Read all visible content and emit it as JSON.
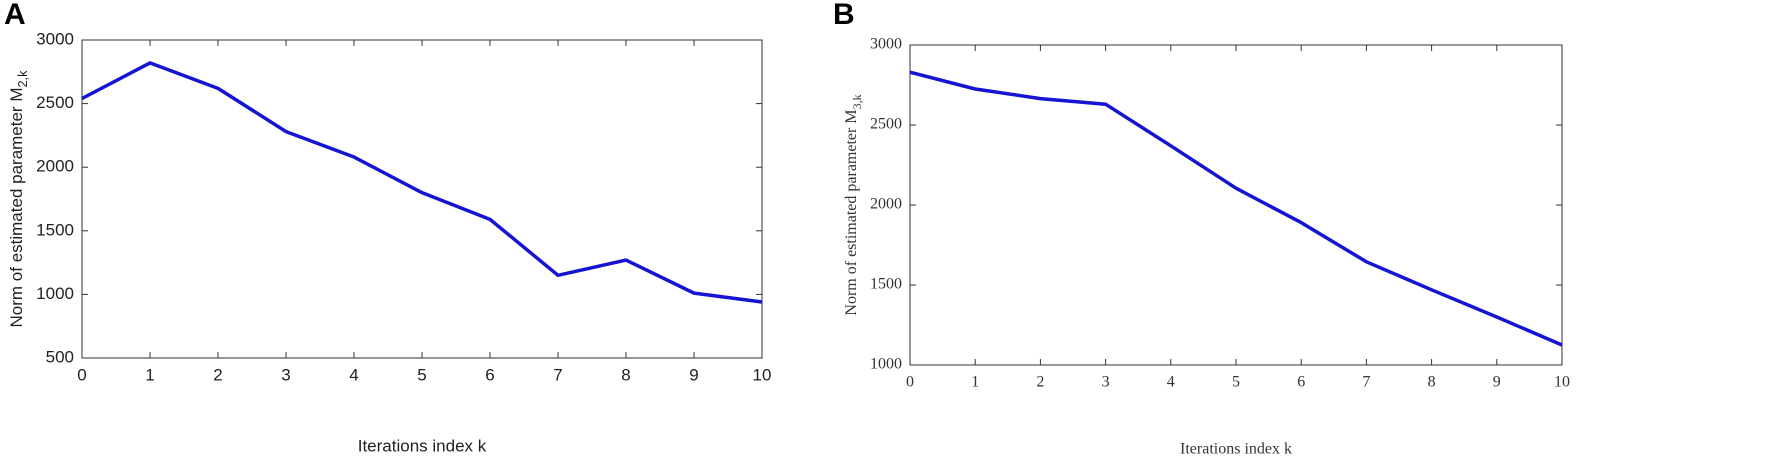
{
  "chart_data": [
    {
      "type": "line",
      "panel": "A",
      "xlabel": "Iterations index k",
      "ylabel": "Norm of estimated parameter M",
      "ylabel_subscript": "2,k",
      "x": [
        0,
        1,
        2,
        3,
        4,
        5,
        6,
        7,
        8,
        9,
        10
      ],
      "xlim": [
        0,
        10
      ],
      "xticks": [
        0,
        1,
        2,
        3,
        4,
        5,
        6,
        7,
        8,
        9,
        10
      ],
      "ylim": [
        500,
        3000
      ],
      "yticks": [
        500,
        1000,
        1500,
        2000,
        2500,
        3000
      ],
      "series": [
        {
          "color": "#1414d2",
          "values": [
            2540,
            2820,
            2620,
            2280,
            2080,
            1800,
            1590,
            1150,
            1270,
            1010,
            940
          ]
        }
      ]
    },
    {
      "type": "line",
      "panel": "B",
      "xlabel": "Iterations index k",
      "ylabel": "Norm of estimated parameter M",
      "ylabel_subscript": "3,k",
      "x": [
        0,
        1,
        2,
        3,
        4,
        5,
        6,
        7,
        8,
        9,
        10
      ],
      "xlim": [
        0,
        10
      ],
      "xticks": [
        0,
        1,
        2,
        3,
        4,
        5,
        6,
        7,
        8,
        9,
        10
      ],
      "ylim": [
        1000,
        3000
      ],
      "yticks": [
        1000,
        1500,
        2000,
        2500,
        3000
      ],
      "series": [
        {
          "color": "#1414d2",
          "values": [
            2830,
            2725,
            2665,
            2630,
            2370,
            2105,
            1890,
            1645,
            1470,
            1300,
            1125
          ]
        }
      ]
    }
  ]
}
